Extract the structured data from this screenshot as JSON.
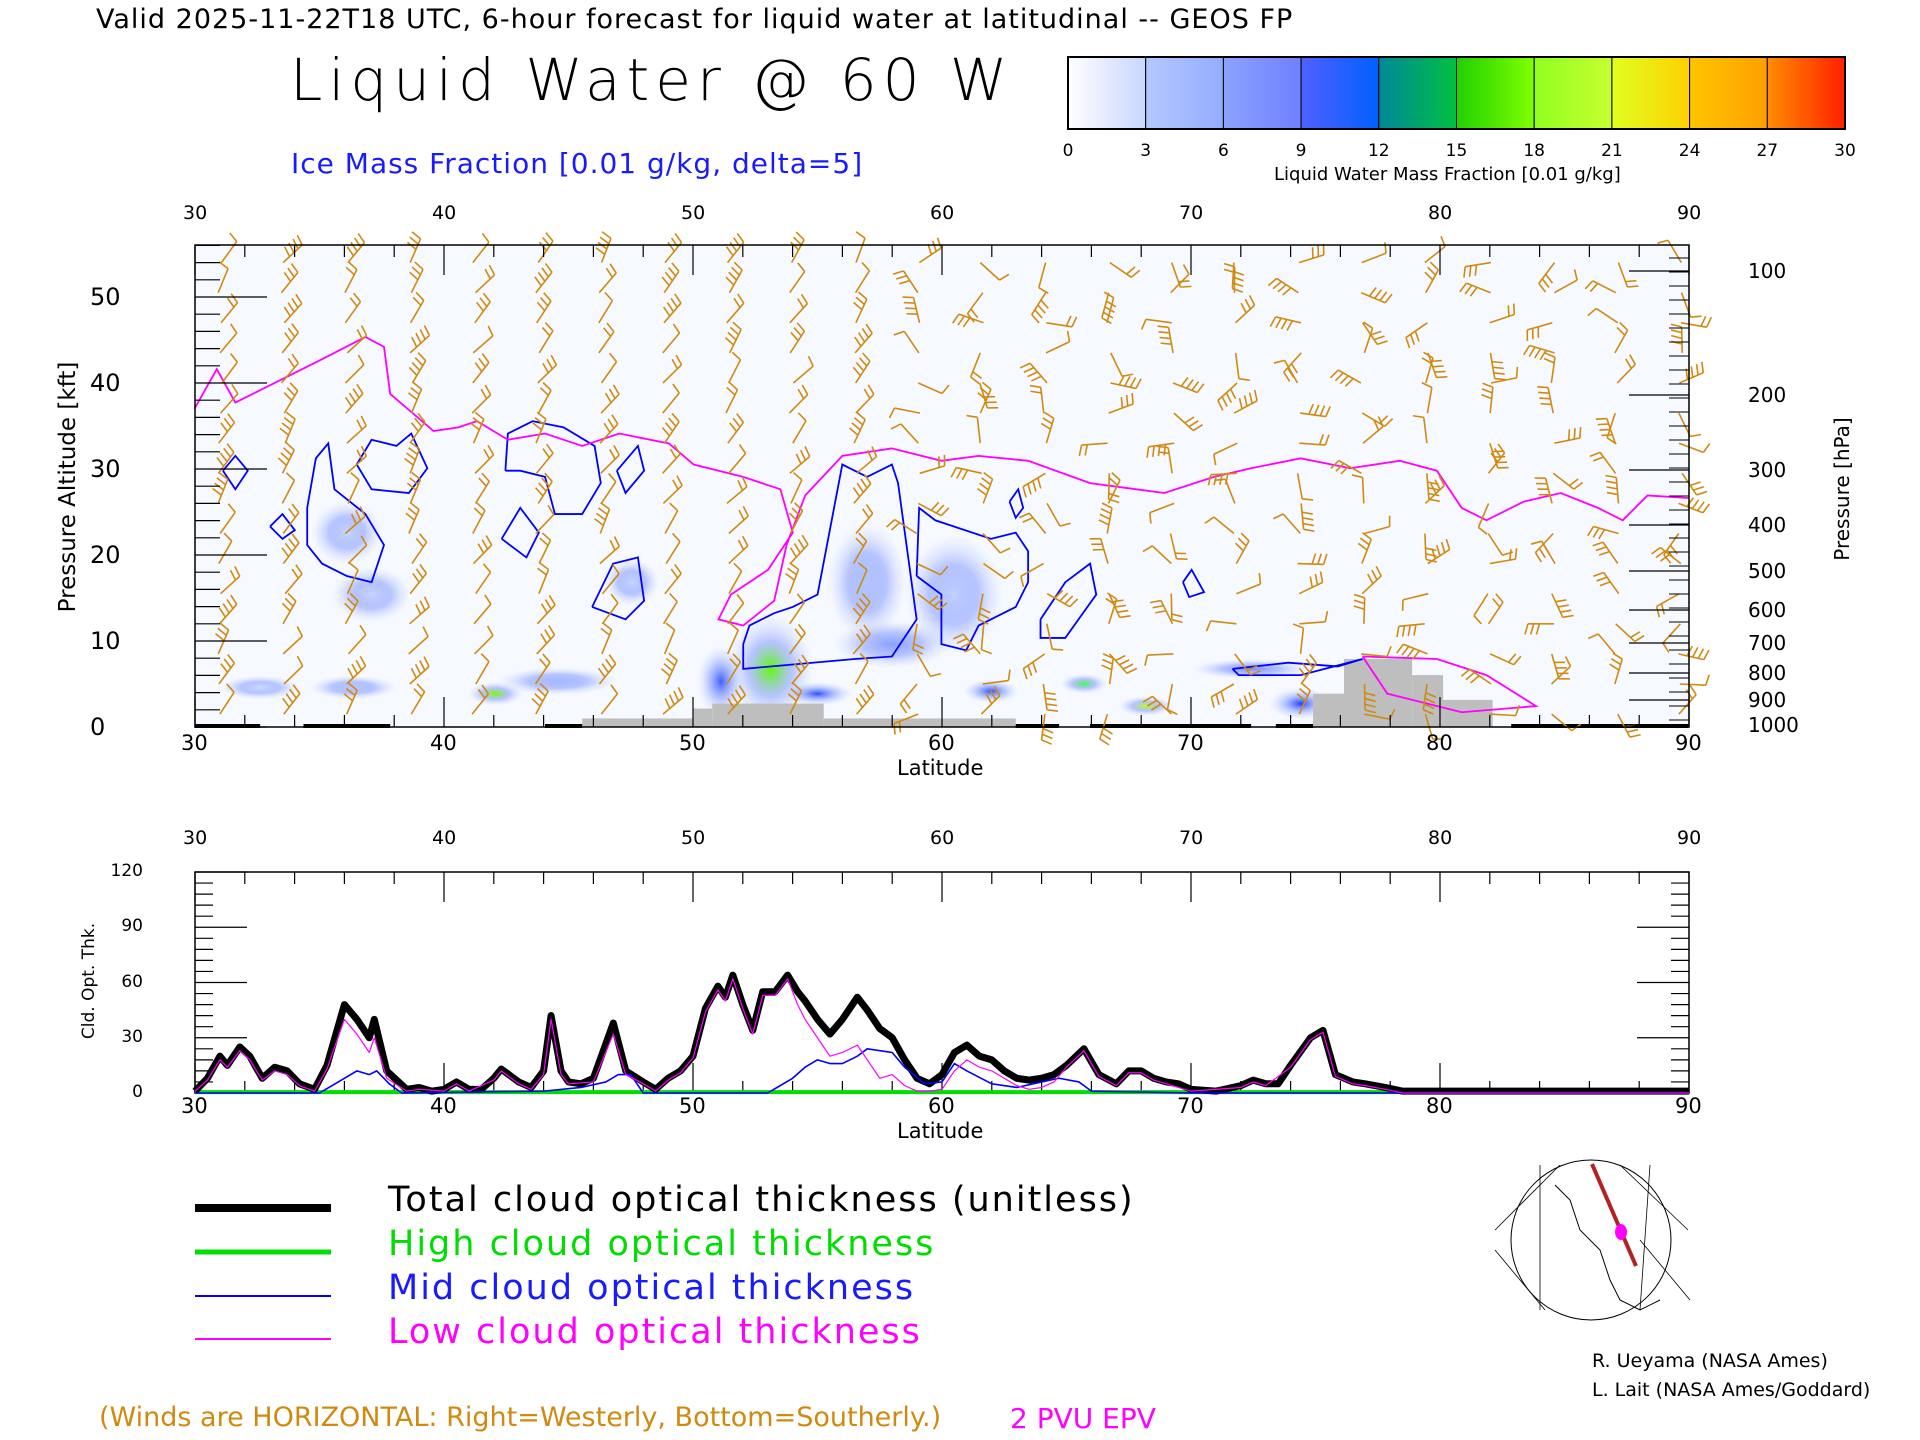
{
  "header": {
    "title": "Valid 2025-11-22T18 UTC, 6-hour forecast for liquid water at latitudinal -- GEOS FP",
    "big_title": "Liquid Water @ 60 W",
    "subtitle": "Ice Mass Fraction [0.01 g/kg, delta=5]"
  },
  "colorbar": {
    "labels": [
      "0",
      "3",
      "6",
      "9",
      "12",
      "15",
      "18",
      "21",
      "24",
      "27",
      "30"
    ],
    "title": "Liquid Water Mass Fraction [0.01 g/kg]",
    "colors": [
      "#ffffff",
      "#c8d6ff",
      "#a9c0ff",
      "#8ca2ff",
      "#5a6cff",
      "#0060ff",
      "#00a070",
      "#20d000",
      "#80ff00",
      "#c8ff30",
      "#ffff00",
      "#ffc000",
      "#ff9800",
      "#ff2000"
    ]
  },
  "upper_plot": {
    "x_ticks": [
      "30",
      "40",
      "50",
      "60",
      "70",
      "80",
      "90"
    ],
    "xlabel": "Latitude",
    "y_ticks": [
      "0",
      "10",
      "20",
      "30",
      "40",
      "50"
    ],
    "ylabel": "Pressure Altitude [kft]",
    "pressure_ticks": [
      "100",
      "200",
      "300",
      "400",
      "500",
      "600",
      "700",
      "800",
      "900",
      "1000"
    ],
    "pressure_label": "Pressure [hPa]",
    "colors": {
      "wind": "#d08a10",
      "ice": "#0000ff",
      "epv": "#ff00ff",
      "terrain": "#bebebe"
    }
  },
  "chart_data": {
    "type": "line",
    "title": "",
    "xlabel": "Latitude",
    "ylabel": "Cld. Opt. Thk.",
    "xlim": [
      30,
      90
    ],
    "ylim": [
      0,
      120
    ],
    "x_ticks": [
      "30",
      "40",
      "50",
      "60",
      "70",
      "80",
      "90"
    ],
    "y_ticks": [
      "0",
      "30",
      "60",
      "90",
      "120"
    ],
    "series": [
      {
        "name": "Total cloud optical thickness (unitless)",
        "color": "#000000",
        "lat": [
          30,
          30.5,
          31,
          31.3,
          31.8,
          32.2,
          32.7,
          33.2,
          33.7,
          34.2,
          34.8,
          35.3,
          36,
          36.5,
          37,
          37.2,
          37.7,
          38.5,
          39,
          39.5,
          40,
          40.5,
          41,
          41.5,
          42,
          42.3,
          43,
          43.5,
          44,
          44.3,
          44.7,
          45,
          45.5,
          46,
          46.8,
          47.3,
          48,
          48.5,
          49,
          49.5,
          50,
          50.5,
          51,
          51.3,
          51.6,
          52,
          52.4,
          52.8,
          53.3,
          53.8,
          54.2,
          54.5,
          55,
          55.5,
          56,
          56.6,
          57,
          57.5,
          58,
          58.5,
          59,
          59.5,
          60,
          60.5,
          61,
          61.5,
          62,
          62.5,
          63,
          63.5,
          64,
          64.5,
          65,
          65.7,
          66.3,
          67,
          67.5,
          68,
          68.5,
          69,
          69.5,
          70,
          71,
          72,
          72.5,
          73,
          73.5,
          74,
          74.8,
          75.3,
          75.8,
          76.5,
          77,
          77.8,
          78.5,
          80,
          82,
          84,
          90
        ],
        "values": [
          1,
          8,
          20,
          15,
          25,
          20,
          8,
          14,
          12,
          5,
          2,
          15,
          48,
          40,
          30,
          40,
          12,
          2,
          3,
          1,
          2,
          6,
          2,
          2,
          8,
          13,
          6,
          3,
          12,
          42,
          12,
          6,
          5,
          8,
          38,
          12,
          6,
          2,
          8,
          12,
          20,
          46,
          58,
          52,
          64,
          48,
          34,
          55,
          55,
          64,
          55,
          50,
          40,
          32,
          40,
          52,
          45,
          35,
          30,
          18,
          8,
          5,
          10,
          22,
          26,
          20,
          18,
          12,
          8,
          7,
          8,
          10,
          15,
          24,
          10,
          5,
          12,
          12,
          8,
          6,
          5,
          2,
          1,
          4,
          7,
          5,
          5,
          15,
          30,
          34,
          10,
          6,
          5,
          3,
          1,
          1,
          1,
          1,
          1
        ]
      },
      {
        "name": "High cloud optical thickness",
        "color": "#00dd00",
        "lat": [
          30,
          90
        ],
        "values": [
          0.5,
          0.5
        ]
      },
      {
        "name": "Mid cloud optical thickness",
        "color": "#0000ff",
        "lat": [
          30,
          35,
          35.5,
          36,
          36.5,
          37,
          37.3,
          37.8,
          38.3,
          44,
          45.5,
          46.5,
          47,
          47.5,
          48,
          53,
          54,
          54.5,
          55,
          55.5,
          56,
          56.6,
          57,
          58,
          58.5,
          59.3,
          60,
          60.5,
          61,
          62,
          63,
          64,
          64.7,
          65.5,
          66,
          70,
          90
        ],
        "values": [
          0,
          0,
          4,
          8,
          12,
          10,
          12,
          5,
          0,
          1,
          3,
          6,
          10,
          10,
          0,
          0,
          8,
          14,
          18,
          16,
          16,
          20,
          24,
          22,
          14,
          5,
          6,
          16,
          12,
          5,
          3,
          6,
          8,
          6,
          1,
          0,
          0
        ]
      },
      {
        "name": "Low cloud optical thickness",
        "color": "#ff00ff",
        "lat": [
          30,
          30.5,
          31,
          31.3,
          31.8,
          32.2,
          32.7,
          33.2,
          33.7,
          34.2,
          34.8,
          35.3,
          36,
          36.5,
          37,
          37.2,
          37.7,
          38.5,
          39,
          40,
          40.5,
          41,
          42,
          42.3,
          43,
          43.5,
          44,
          44.3,
          44.7,
          45,
          46,
          46.8,
          47.3,
          48,
          48.5,
          49,
          49.5,
          50,
          50.5,
          51,
          51.3,
          51.6,
          52,
          52.4,
          52.8,
          53.3,
          53.8,
          54.2,
          54.5,
          55,
          55.5,
          56,
          56.6,
          57,
          57.5,
          58,
          58.5,
          59,
          59.5,
          60,
          60.5,
          61,
          61.5,
          62,
          63,
          63.5,
          64,
          64.5,
          65,
          65.7,
          66.3,
          67,
          67.5,
          68,
          68.5,
          69,
          70,
          72,
          72.5,
          73,
          74,
          74.8,
          75.3,
          75.8,
          76.5,
          77,
          77.8,
          78.5,
          90
        ],
        "values": [
          1,
          7,
          18,
          14,
          23,
          18,
          7,
          12,
          10,
          4,
          1,
          13,
          40,
          32,
          22,
          30,
          8,
          1,
          2,
          1,
          5,
          1,
          7,
          12,
          5,
          2,
          10,
          40,
          10,
          5,
          6,
          32,
          10,
          5,
          1,
          7,
          11,
          19,
          44,
          56,
          50,
          62,
          46,
          32,
          53,
          53,
          62,
          48,
          40,
          30,
          20,
          22,
          26,
          18,
          8,
          10,
          4,
          1,
          1,
          2,
          12,
          18,
          14,
          12,
          4,
          2,
          3,
          6,
          14,
          23,
          9,
          4,
          11,
          11,
          7,
          5,
          1,
          3,
          6,
          4,
          14,
          29,
          33,
          9,
          5,
          4,
          2,
          0,
          0
        ]
      }
    ]
  },
  "legend": {
    "total": "Total cloud optical thickness (unitless)",
    "high": "High cloud optical thickness",
    "mid": "Mid cloud optical thickness",
    "low": "Low cloud optical thickness"
  },
  "credits": {
    "line1": "R. Ueyama (NASA Ames)",
    "line2": "L. Lait (NASA Ames/Goddard)"
  },
  "footer": {
    "winds_note": "(Winds are HORIZONTAL: Right=Westerly, Bottom=Southerly.)",
    "epv_label": "2 PVU EPV"
  }
}
